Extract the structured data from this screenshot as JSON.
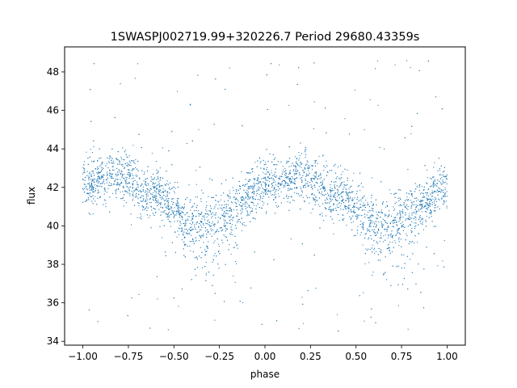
{
  "chart_data": {
    "type": "scatter",
    "title": "1SWASPJ002719.99+320226.7 Period 29680.43359s",
    "xlabel": "phase",
    "ylabel": "flux",
    "xlim": [
      -1.1,
      1.1
    ],
    "ylim": [
      33.8,
      49.3
    ],
    "xticks": [
      -1.0,
      -0.75,
      -0.5,
      -0.25,
      0.0,
      0.25,
      0.5,
      0.75,
      1.0
    ],
    "xtick_labels": [
      "−1.00",
      "−0.75",
      "−0.50",
      "−0.25",
      "0.00",
      "0.25",
      "0.50",
      "0.75",
      "1.00"
    ],
    "yticks": [
      34,
      36,
      38,
      40,
      42,
      44,
      46,
      48
    ],
    "ytick_labels": [
      "34",
      "36",
      "38",
      "40",
      "42",
      "44",
      "46",
      "48"
    ],
    "grid": false,
    "point_color": "#1f77b4",
    "description_points": {
      "x": [
        -1.0,
        -0.8,
        -0.6,
        -0.4,
        -0.3,
        -0.2,
        0.0,
        0.2,
        0.4,
        0.6,
        0.7,
        0.8,
        1.0
      ],
      "y": [
        42.2,
        42.6,
        41.6,
        40.2,
        40.3,
        40.9,
        42.1,
        42.6,
        41.6,
        40.2,
        40.3,
        40.9,
        42.1
      ]
    }
  }
}
